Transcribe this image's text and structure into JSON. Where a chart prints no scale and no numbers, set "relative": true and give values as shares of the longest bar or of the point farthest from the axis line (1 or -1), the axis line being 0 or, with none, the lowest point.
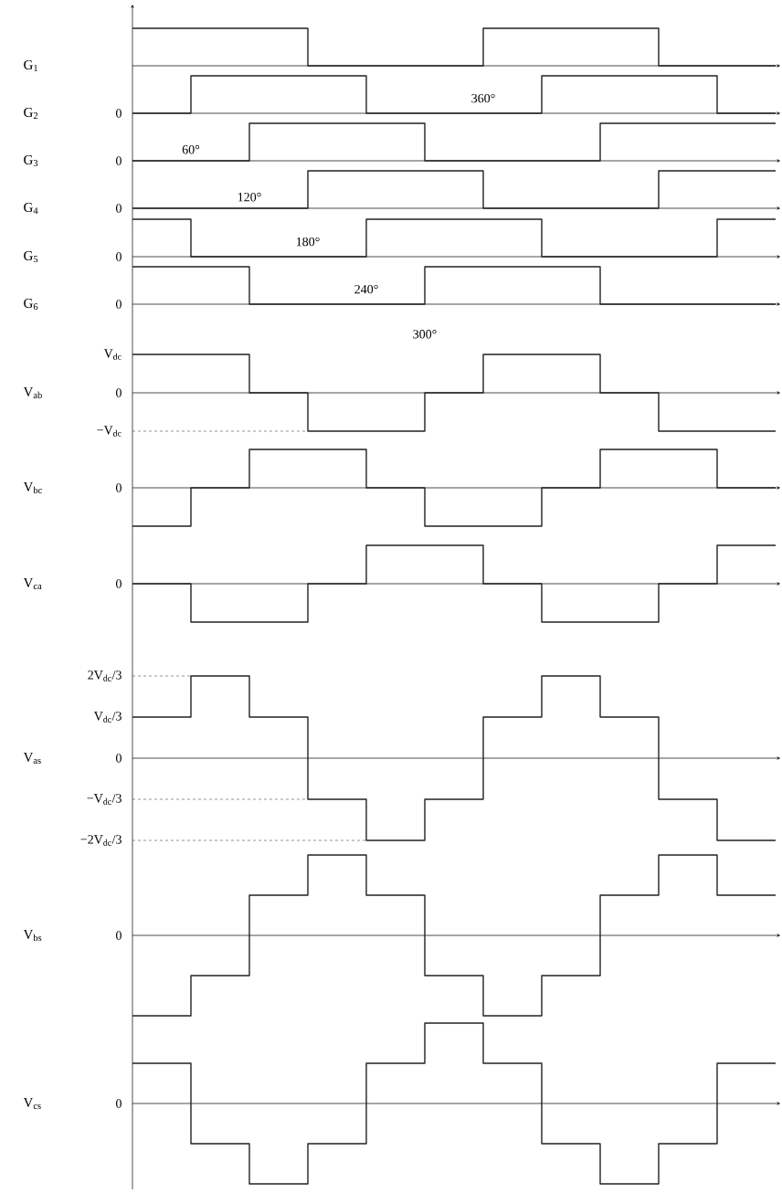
{
  "chart_data": [
    {
      "type": "step",
      "ylabel": "G$_{1}$",
      "relative": true,
      "color": "#222222",
      "categories": [
        null,
        null,
        null,
        null,
        null,
        null,
        null,
        null,
        null,
        null,
        null,
        null
      ],
      "values": [
        1,
        1,
        1,
        0,
        0,
        0,
        1,
        1,
        1,
        0,
        0,
        0
      ]
    },
    {
      "type": "step",
      "ylabel": "G$_{2}$",
      "relative": true,
      "color": "#222222",
      "categories": [
        null,
        null,
        null,
        null,
        null,
        null,
        null,
        null,
        null,
        null,
        null,
        null
      ],
      "values": [
        0,
        1,
        1,
        1,
        0,
        0,
        0,
        1,
        1,
        1,
        0,
        0
      ],
      "annotations": [
        "0",
        "360°"
      ]
    },
    {
      "type": "step",
      "ylabel": "G$_{3}$",
      "relative": true,
      "color": "#222222",
      "categories": [
        null,
        null,
        null,
        null,
        null,
        null,
        null,
        null,
        null,
        null,
        null,
        null
      ],
      "values": [
        0,
        0,
        1,
        1,
        1,
        0,
        0,
        0,
        1,
        1,
        1,
        1
      ],
      "annotations": [
        "0",
        "60°"
      ]
    },
    {
      "type": "step",
      "ylabel": "G$_{4}$",
      "relative": true,
      "color": "#222222",
      "categories": [
        null,
        null,
        null,
        null,
        null,
        null,
        null,
        null,
        null,
        null,
        null,
        null
      ],
      "values": [
        0,
        0,
        0,
        1,
        1,
        1,
        0,
        0,
        0,
        1,
        1,
        1
      ],
      "annotations": [
        "0",
        "120°"
      ]
    },
    {
      "type": "step",
      "ylabel": "G$_{5}$",
      "relative": true,
      "color": "#222222",
      "categories": [
        null,
        null,
        null,
        null,
        null,
        null,
        null,
        null,
        null,
        null,
        null,
        null
      ],
      "values": [
        1,
        0,
        0,
        0,
        1,
        1,
        1,
        0,
        0,
        0,
        1,
        1
      ],
      "annotations": [
        "0",
        "180°"
      ]
    },
    {
      "type": "step",
      "ylabel": "G$_{6}$",
      "relative": true,
      "color": "#222222",
      "categories": [
        null,
        null,
        null,
        null,
        null,
        null,
        null,
        null,
        null,
        null,
        null,
        null
      ],
      "values": [
        1,
        1,
        0,
        0,
        0,
        1,
        1,
        1,
        0,
        0,
        0,
        0
      ],
      "annotations": [
        "0",
        "240°",
        "300°"
      ]
    },
    {
      "type": "step",
      "ylabel": "V$_{ab}$",
      "relative": true,
      "color": "#222222",
      "categories": [
        null,
        null,
        null,
        null,
        null,
        null,
        null,
        null,
        null,
        null,
        null,
        null
      ],
      "values": [
        1,
        1,
        0,
        -1,
        -1,
        0,
        1,
        1,
        0,
        -1,
        -1,
        -1
      ],
      "annotations": [
        "V$_{dc}$",
        "0",
        "−V$_{dc}$"
      ],
      "ref_lines": [
        {
          "axis": "y",
          "value": -1,
          "line_style": "dashed"
        }
      ]
    },
    {
      "type": "step",
      "ylabel": "V$_{bc}$",
      "relative": true,
      "color": "#222222",
      "categories": [
        null,
        null,
        null,
        null,
        null,
        null,
        null,
        null,
        null,
        null,
        null,
        null
      ],
      "values": [
        -1,
        0,
        1,
        1,
        0,
        -1,
        -1,
        0,
        1,
        1,
        0,
        0
      ],
      "annotations": [
        "0"
      ]
    },
    {
      "type": "step",
      "ylabel": "V$_{ca}$",
      "relative": true,
      "color": "#222222",
      "categories": [
        null,
        null,
        null,
        null,
        null,
        null,
        null,
        null,
        null,
        null,
        null,
        null
      ],
      "values": [
        0,
        -1,
        -1,
        0,
        1,
        1,
        0,
        -1,
        -1,
        0,
        1,
        1
      ],
      "annotations": [
        "0"
      ]
    },
    {
      "type": "step",
      "ylabel": "V$_{as}$",
      "relative": true,
      "color": "#222222",
      "categories": [
        null,
        null,
        null,
        null,
        null,
        null,
        null,
        null,
        null,
        null,
        null,
        null
      ],
      "values": [
        0.5,
        1,
        0.5,
        -0.5,
        -1,
        -0.5,
        0.5,
        1,
        0.5,
        -0.5,
        -1,
        -1
      ],
      "annotations": [
        "2V$_{dc}$/3",
        "V$_{dc}$/3",
        "0",
        "−V$_{dc}$/3",
        "−2V$_{dc}$/3"
      ],
      "ref_lines": [
        {
          "axis": "y",
          "value": 1,
          "line_style": "dashed"
        },
        {
          "axis": "y",
          "value": -0.5,
          "line_style": "dashed"
        },
        {
          "axis": "y",
          "value": -1,
          "line_style": "dashed"
        }
      ]
    },
    {
      "type": "step",
      "ylabel": "V$_{bs}$",
      "relative": true,
      "color": "#222222",
      "categories": [
        null,
        null,
        null,
        null,
        null,
        null,
        null,
        null,
        null,
        null,
        null,
        null
      ],
      "values": [
        -1,
        -0.5,
        0.5,
        1,
        0.5,
        -0.5,
        -1,
        -0.5,
        0.5,
        1,
        0.5,
        0.5
      ],
      "annotations": [
        "0"
      ]
    },
    {
      "type": "step",
      "ylabel": "V$_{cs}$",
      "relative": true,
      "color": "#222222",
      "categories": [
        null,
        null,
        null,
        null,
        null,
        null,
        null,
        null,
        null,
        null,
        null,
        null
      ],
      "values": [
        0.5,
        -0.5,
        -1,
        -0.5,
        0.5,
        1,
        0.5,
        -0.5,
        -1,
        -0.5,
        0.5,
        0.5
      ],
      "annotations": [
        "0"
      ]
    }
  ]
}
